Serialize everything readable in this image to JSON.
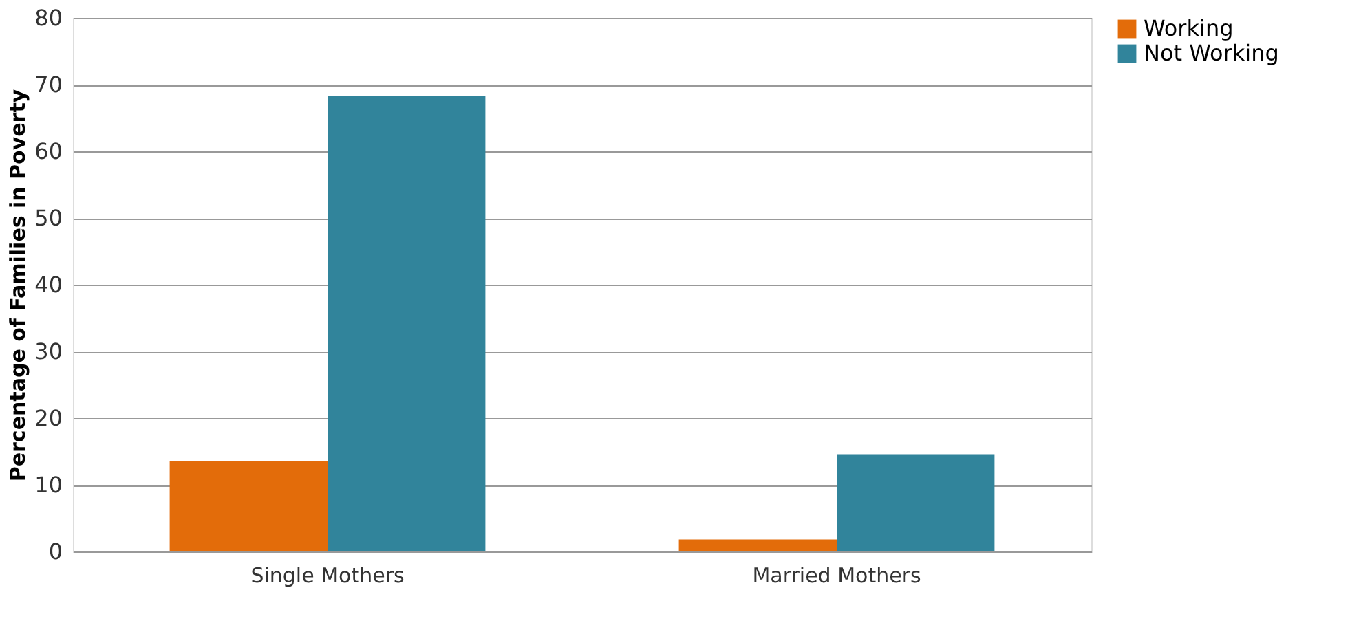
{
  "chart_data": {
    "type": "bar",
    "ylabel": "Percentage of Families in Poverty",
    "categories": [
      "Single Mothers",
      "Married Mothers"
    ],
    "series": [
      {
        "name": "Working",
        "color": "#e36c0a",
        "values": [
          13.5,
          1.8
        ]
      },
      {
        "name": "Not Working",
        "color": "#31849b",
        "values": [
          68.3,
          14.6
        ]
      }
    ],
    "ylim": [
      0,
      80
    ],
    "yticks": [
      0,
      10,
      20,
      30,
      40,
      50,
      60,
      70,
      80
    ],
    "grid": "y",
    "legend": "right"
  }
}
